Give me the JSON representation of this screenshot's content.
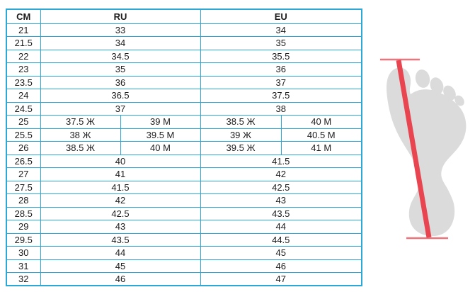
{
  "chart_data": {
    "type": "table",
    "columns": [
      "CM",
      "RU",
      "EU"
    ],
    "rows": [
      {
        "cm": "21",
        "ru": [
          "33"
        ],
        "eu": [
          "34"
        ]
      },
      {
        "cm": "21.5",
        "ru": [
          "34"
        ],
        "eu": [
          "35"
        ]
      },
      {
        "cm": "22",
        "ru": [
          "34.5"
        ],
        "eu": [
          "35.5"
        ]
      },
      {
        "cm": "23",
        "ru": [
          "35"
        ],
        "eu": [
          "36"
        ]
      },
      {
        "cm": "23.5",
        "ru": [
          "36"
        ],
        "eu": [
          "37"
        ]
      },
      {
        "cm": "24",
        "ru": [
          "36.5"
        ],
        "eu": [
          "37.5"
        ]
      },
      {
        "cm": "24.5",
        "ru": [
          "37"
        ],
        "eu": [
          "38"
        ]
      },
      {
        "cm": "25",
        "ru": [
          "37.5 Ж",
          "39 М"
        ],
        "eu": [
          "38.5 Ж",
          "40 М"
        ]
      },
      {
        "cm": "25.5",
        "ru": [
          "38 Ж",
          "39.5 М"
        ],
        "eu": [
          "39 Ж",
          "40.5 М"
        ]
      },
      {
        "cm": "26",
        "ru": [
          "38.5 Ж",
          "40 М"
        ],
        "eu": [
          "39.5 Ж",
          "41 М"
        ]
      },
      {
        "cm": "26.5",
        "ru": [
          "40"
        ],
        "eu": [
          "41.5"
        ]
      },
      {
        "cm": "27",
        "ru": [
          "41"
        ],
        "eu": [
          "42"
        ]
      },
      {
        "cm": "27.5",
        "ru": [
          "41.5"
        ],
        "eu": [
          "42.5"
        ]
      },
      {
        "cm": "28",
        "ru": [
          "42"
        ],
        "eu": [
          "43"
        ]
      },
      {
        "cm": "28.5",
        "ru": [
          "42.5"
        ],
        "eu": [
          "43.5"
        ]
      },
      {
        "cm": "29",
        "ru": [
          "43"
        ],
        "eu": [
          "44"
        ]
      },
      {
        "cm": "29.5",
        "ru": [
          "43.5"
        ],
        "eu": [
          "44.5"
        ]
      },
      {
        "cm": "30",
        "ru": [
          "44"
        ],
        "eu": [
          "45"
        ]
      },
      {
        "cm": "31",
        "ru": [
          "45"
        ],
        "eu": [
          "46"
        ]
      },
      {
        "cm": "32",
        "ru": [
          "46"
        ],
        "eu": [
          "47"
        ]
      }
    ]
  },
  "illustration": {
    "foot_color": "#dbdbdb",
    "line_color": "#e84550",
    "cap_color": "#ee737b"
  },
  "colors": {
    "table_border": "#2da8d6",
    "text": "#1c1c1c",
    "background": "#ffffff"
  }
}
